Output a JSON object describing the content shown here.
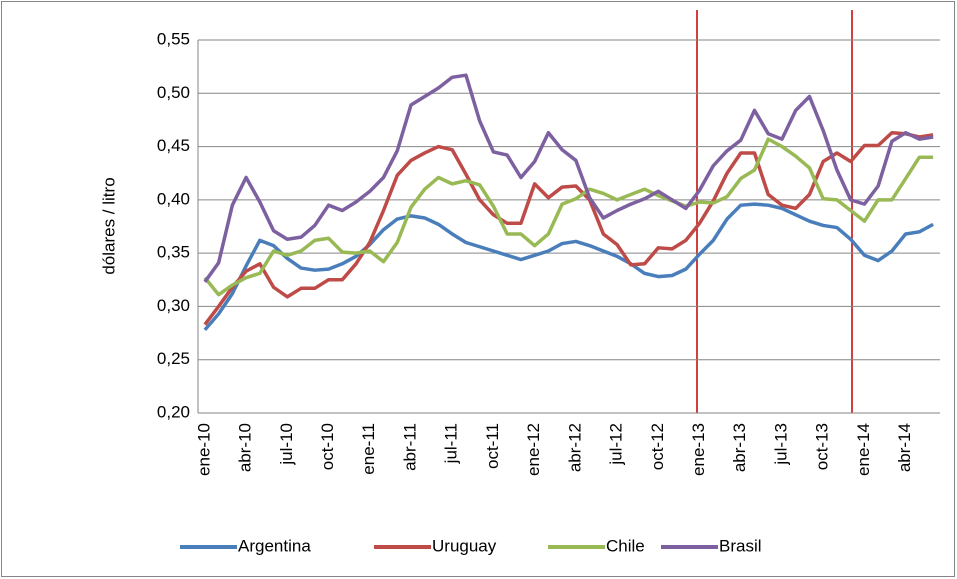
{
  "chart_data": {
    "type": "line",
    "y_label": "dólares / litro",
    "categories": [
      "ene-10",
      null,
      null,
      "abr-10",
      null,
      null,
      "jul-10",
      null,
      null,
      "oct-10",
      null,
      null,
      "ene-11",
      null,
      null,
      "abr-11",
      null,
      null,
      "jul-11",
      null,
      null,
      "oct-11",
      null,
      null,
      "ene-12",
      null,
      null,
      "abr-12",
      null,
      null,
      "jul-12",
      null,
      null,
      "oct-12",
      null,
      null,
      "ene-13",
      null,
      null,
      "abr-13",
      null,
      null,
      "jul-13",
      null,
      null,
      "oct-13",
      null,
      null,
      "ene-14",
      null,
      null,
      "abr-14",
      null,
      null
    ],
    "series": [
      {
        "name": "Argentina",
        "color": "#4a7ebb",
        "values": [
          0.278,
          0.293,
          0.312,
          0.338,
          0.362,
          0.357,
          0.345,
          0.336,
          0.334,
          0.335,
          0.34,
          0.347,
          0.358,
          0.372,
          0.382,
          0.385,
          0.383,
          0.377,
          0.368,
          0.36,
          0.356,
          0.352,
          0.348,
          0.344,
          0.348,
          0.352,
          0.359,
          0.361,
          0.357,
          0.352,
          0.347,
          0.34,
          0.331,
          0.328,
          0.329,
          0.335,
          0.349,
          0.362,
          0.382,
          0.395,
          0.396,
          0.395,
          0.392,
          0.386,
          0.38,
          0.376,
          0.374,
          0.363,
          0.348,
          0.343,
          0.352,
          0.368,
          0.37,
          0.377
        ]
      },
      {
        "name": "Uruguay",
        "color": "#be4b48",
        "values": [
          0.283,
          0.3,
          0.318,
          0.333,
          0.34,
          0.318,
          0.309,
          0.317,
          0.317,
          0.325,
          0.325,
          0.34,
          0.36,
          0.39,
          0.423,
          0.437,
          0.444,
          0.45,
          0.447,
          0.424,
          0.4,
          0.386,
          0.378,
          0.378,
          0.415,
          0.402,
          0.412,
          0.413,
          0.4,
          0.368,
          0.358,
          0.339,
          0.34,
          0.355,
          0.354,
          0.362,
          0.378,
          0.399,
          0.425,
          0.444,
          0.444,
          0.405,
          0.395,
          0.392,
          0.405,
          0.436,
          0.444,
          0.436,
          0.451,
          0.451,
          0.463,
          0.462,
          0.459,
          0.461
        ]
      },
      {
        "name": "Chile",
        "color": "#98b954",
        "values": [
          0.327,
          0.311,
          0.32,
          0.327,
          0.331,
          0.352,
          0.348,
          0.352,
          0.362,
          0.364,
          0.351,
          0.35,
          0.352,
          0.342,
          0.36,
          0.393,
          0.41,
          0.421,
          0.415,
          0.418,
          0.414,
          0.394,
          0.368,
          0.368,
          0.357,
          0.368,
          0.396,
          0.401,
          0.41,
          0.406,
          0.4,
          0.405,
          0.41,
          0.404,
          0.399,
          0.394,
          0.398,
          0.397,
          0.403,
          0.42,
          0.428,
          0.457,
          0.45,
          0.441,
          0.43,
          0.401,
          0.4,
          0.39,
          0.38,
          0.4,
          0.4,
          0.42,
          0.44,
          0.44
        ]
      },
      {
        "name": "Brasil",
        "color": "#7d60a0",
        "values": [
          0.323,
          0.341,
          0.395,
          0.421,
          0.398,
          0.371,
          0.363,
          0.365,
          0.376,
          0.395,
          0.39,
          0.398,
          0.408,
          0.421,
          0.446,
          0.489,
          0.497,
          0.505,
          0.515,
          0.517,
          0.474,
          0.445,
          0.442,
          0.421,
          0.436,
          0.463,
          0.447,
          0.437,
          0.402,
          0.383,
          0.39,
          0.396,
          0.401,
          0.408,
          0.4,
          0.392,
          0.409,
          0.432,
          0.446,
          0.456,
          0.484,
          0.462,
          0.457,
          0.484,
          0.497,
          0.465,
          0.428,
          0.4,
          0.396,
          0.413,
          0.455,
          0.463,
          0.457,
          0.459
        ]
      }
    ],
    "ylim": [
      0.2,
      0.55
    ],
    "yticks": [
      {
        "value": 0.2,
        "label": "0,20"
      },
      {
        "value": 0.25,
        "label": "0,25"
      },
      {
        "value": 0.3,
        "label": "0,30"
      },
      {
        "value": 0.35,
        "label": "0,35"
      },
      {
        "value": 0.4,
        "label": "0,40"
      },
      {
        "value": 0.45,
        "label": "0,45"
      },
      {
        "value": 0.5,
        "label": "0,50"
      },
      {
        "value": 0.55,
        "label": "0,55"
      }
    ],
    "grid": true,
    "legend": "bottom"
  }
}
